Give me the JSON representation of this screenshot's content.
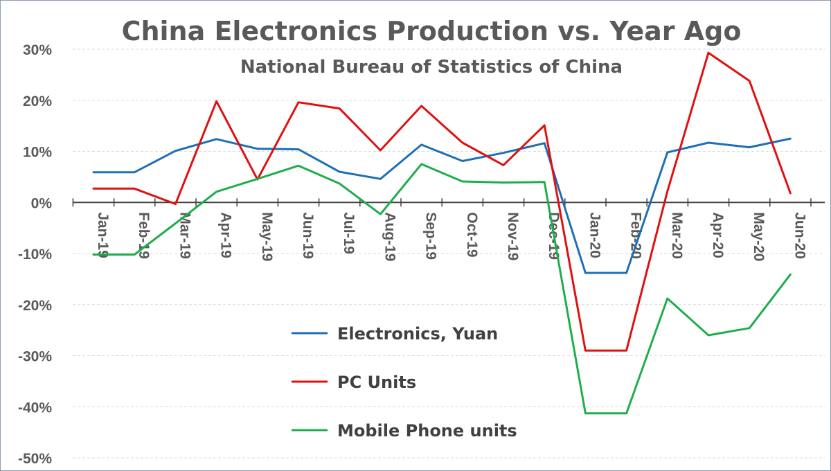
{
  "chart_data": {
    "type": "line",
    "title": "China Electronics Production vs. Year Ago",
    "subtitle": "National Bureau of Statistics of China",
    "xlabel": "",
    "ylabel": "",
    "ylim": [
      -50,
      30
    ],
    "y_ticks": [
      30,
      20,
      10,
      0,
      -10,
      -20,
      -30,
      -40,
      -50
    ],
    "y_tick_labels": [
      "30%",
      "20%",
      "10%",
      "0%",
      "-10%",
      "-20%",
      "-30%",
      "-40%",
      "-50%"
    ],
    "grid": "horizontal dashed",
    "legend_position": "bottom-center",
    "categories": [
      "Jan-19",
      "Feb-19",
      "Mar-19",
      "Apr-19",
      "May-19",
      "Jun-19",
      "Jul-19",
      "Aug-19",
      "Sep-19",
      "Oct-19",
      "Nov-19",
      "Dec-19",
      "Jan-20",
      "Feb-20",
      "Mar-20",
      "Apr-20",
      "May-20",
      "Jun-20"
    ],
    "series": [
      {
        "name": "Electronics, Yuan",
        "color": "#1f6fb5",
        "values": [
          5.9,
          5.9,
          10.1,
          12.4,
          10.5,
          10.4,
          6.0,
          4.6,
          11.3,
          8.1,
          9.7,
          11.6,
          -13.8,
          -13.8,
          9.8,
          11.7,
          10.8,
          12.5
        ]
      },
      {
        "name": "PC Units",
        "color": "#e01010",
        "values": [
          2.7,
          2.7,
          -0.3,
          19.8,
          4.5,
          19.6,
          18.4,
          10.2,
          18.9,
          11.7,
          7.3,
          15.1,
          -29.0,
          -29.0,
          2.2,
          29.3,
          23.8,
          1.8
        ]
      },
      {
        "name": "Mobile Phone units",
        "color": "#1fad4c",
        "values": [
          -10.2,
          -10.2,
          -4.1,
          2.1,
          4.6,
          7.2,
          3.7,
          -2.3,
          7.5,
          4.1,
          3.9,
          4.0,
          -41.3,
          -41.3,
          -18.8,
          -26.0,
          -24.6,
          -14.1
        ]
      }
    ]
  }
}
